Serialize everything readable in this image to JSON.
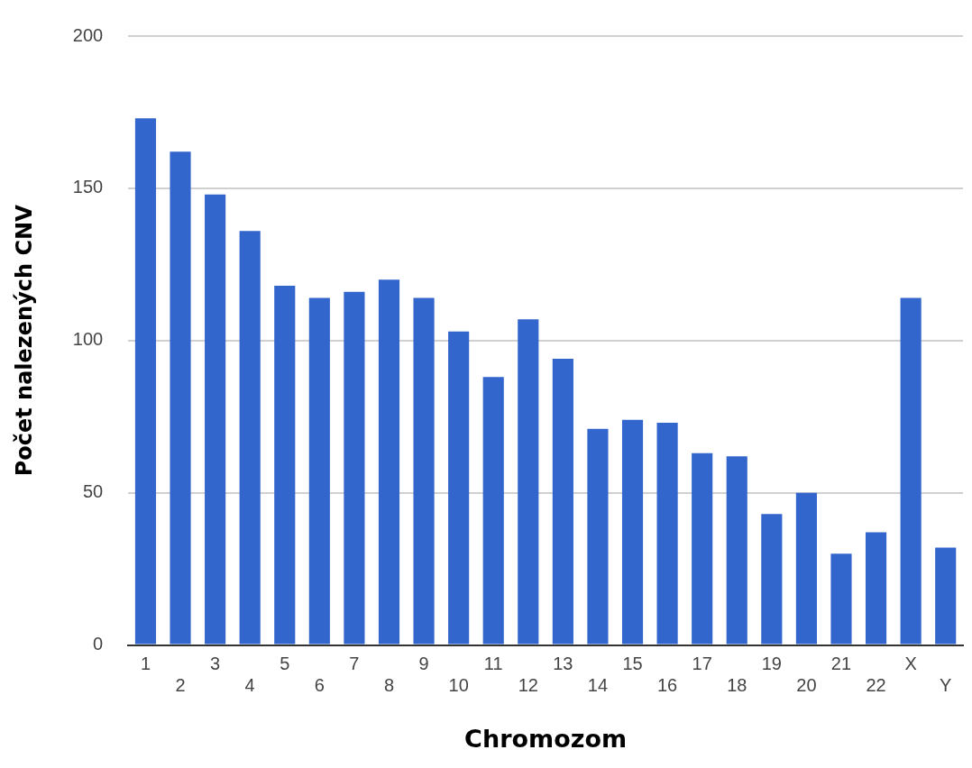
{
  "chart_data": {
    "type": "bar",
    "xlabel": "Chromozom",
    "ylabel": "Počet nalezených CNV",
    "categories": [
      "1",
      "2",
      "3",
      "4",
      "5",
      "6",
      "7",
      "8",
      "9",
      "10",
      "11",
      "12",
      "13",
      "14",
      "15",
      "16",
      "17",
      "18",
      "19",
      "20",
      "21",
      "22",
      "X",
      "Y"
    ],
    "values": [
      173,
      162,
      148,
      136,
      118,
      114,
      116,
      120,
      114,
      103,
      88,
      107,
      94,
      71,
      74,
      73,
      63,
      62,
      43,
      50,
      30,
      37,
      114,
      32
    ],
    "color": "#3366cc",
    "ylim": [
      0,
      200
    ],
    "yticks": [
      0,
      50,
      100,
      150,
      200
    ],
    "grid": "y",
    "legend": false
  }
}
